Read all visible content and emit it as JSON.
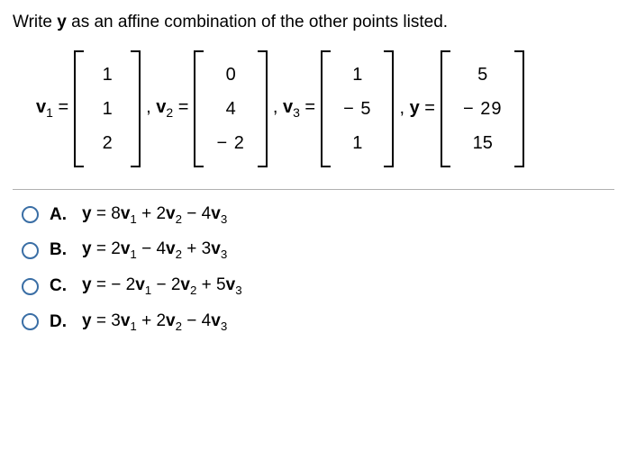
{
  "question": {
    "prefix": "Write ",
    "boldvar": "y",
    "suffix": " as an affine combination of the other points listed."
  },
  "vectors": {
    "v1": {
      "label_base": "v",
      "label_sub": "1",
      "eq": " =",
      "rows": [
        "1",
        "1",
        "2"
      ]
    },
    "v2": {
      "comma": ", ",
      "label_base": "v",
      "label_sub": "2",
      "eq": " =",
      "rows": [
        "0",
        "4",
        "− 2"
      ]
    },
    "v3": {
      "comma": ", ",
      "label_base": "v",
      "label_sub": "3",
      "eq": " =",
      "rows": [
        "1",
        "− 5",
        "1"
      ]
    },
    "y": {
      "comma": ", ",
      "label_base": "y",
      "label_sub": "",
      "eq": " =",
      "rows": [
        "5",
        "− 29",
        "15"
      ]
    }
  },
  "options": {
    "A": {
      "letter": "A.",
      "expr_html": "<b>y</b> = 8<b>v</b><span class=\"sub\">1</span> + 2<b>v</b><span class=\"sub\">2</span> − 4<b>v</b><span class=\"sub\">3</span>"
    },
    "B": {
      "letter": "B.",
      "expr_html": "<b>y</b> = 2<b>v</b><span class=\"sub\">1</span> − 4<b>v</b><span class=\"sub\">2</span> + 3<b>v</b><span class=\"sub\">3</span>"
    },
    "C": {
      "letter": "C.",
      "expr_html": "<b>y</b> = − 2<b>v</b><span class=\"sub\">1</span> − 2<b>v</b><span class=\"sub\">2</span> + 5<b>v</b><span class=\"sub\">3</span>"
    },
    "D": {
      "letter": "D.",
      "expr_html": "<b>y</b> = 3<b>v</b><span class=\"sub\">1</span> + 2<b>v</b><span class=\"sub\">2</span> − 4<b>v</b><span class=\"sub\">3</span>"
    }
  }
}
